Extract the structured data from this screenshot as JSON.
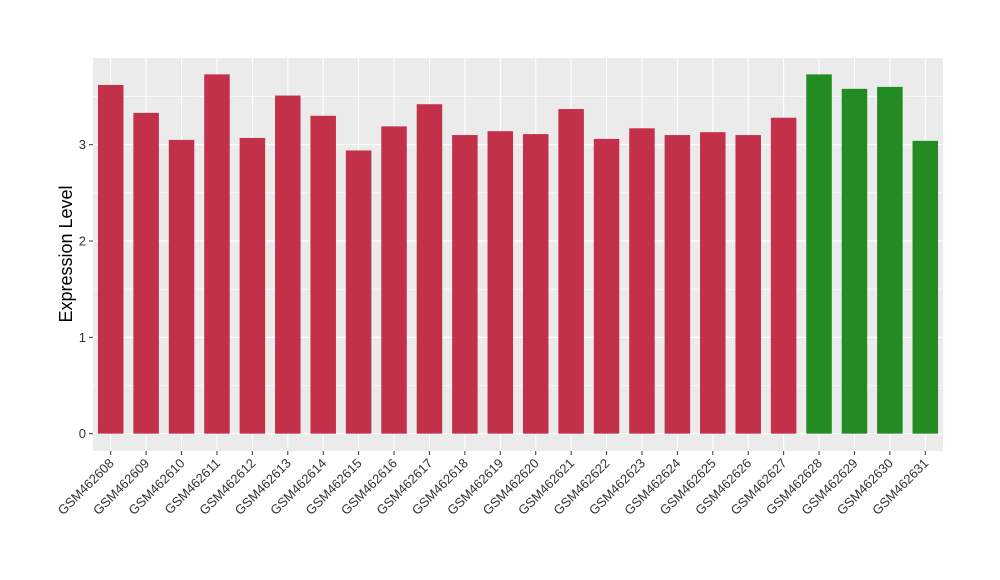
{
  "chart_data": {
    "type": "bar",
    "title": "",
    "xlabel": "",
    "ylabel": "Expression Level",
    "ylim": [
      -0.18,
      3.9
    ],
    "yticks": [
      0,
      1,
      2,
      3
    ],
    "grid": true,
    "legend": "none",
    "colors": {
      "group_a": "#c3304a",
      "group_b": "#228b22",
      "panel": "#ebebeb",
      "gridline": "#ffffff"
    },
    "categories": [
      "GSM462608",
      "GSM462609",
      "GSM462610",
      "GSM462611",
      "GSM462612",
      "GSM462613",
      "GSM462614",
      "GSM462615",
      "GSM462616",
      "GSM462617",
      "GSM462618",
      "GSM462619",
      "GSM462620",
      "GSM462621",
      "GSM462622",
      "GSM462623",
      "GSM462624",
      "GSM462625",
      "GSM462626",
      "GSM462627",
      "GSM462628",
      "GSM462629",
      "GSM462630",
      "GSM462631"
    ],
    "values": [
      3.62,
      3.33,
      3.05,
      3.73,
      3.07,
      3.51,
      3.3,
      2.94,
      3.19,
      3.42,
      3.1,
      3.14,
      3.11,
      3.37,
      3.06,
      3.17,
      3.1,
      3.13,
      3.1,
      3.28,
      3.73,
      3.58,
      3.6,
      3.04
    ],
    "groups": [
      "a",
      "a",
      "a",
      "a",
      "a",
      "a",
      "a",
      "a",
      "a",
      "a",
      "a",
      "a",
      "a",
      "a",
      "a",
      "a",
      "a",
      "a",
      "a",
      "a",
      "b",
      "b",
      "b",
      "b"
    ]
  }
}
